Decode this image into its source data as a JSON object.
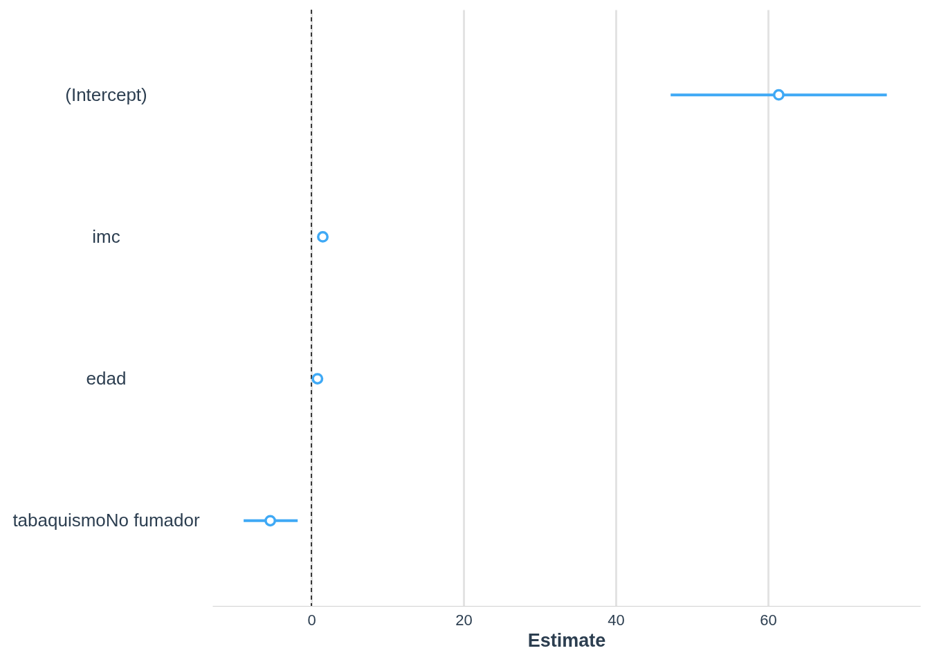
{
  "chart_data": {
    "type": "scatter",
    "orientation": "horizontal",
    "categories": [
      "(Intercept)",
      "imc",
      "edad",
      "tabaquismoNo fumador"
    ],
    "values": [
      61.4,
      1.5,
      0.8,
      -5.4
    ],
    "errors": [
      [
        47.2,
        75.6
      ],
      null,
      null,
      [
        -8.9,
        -1.8
      ]
    ],
    "color": "#3fa9f5",
    "marker": "circle",
    "xlabel": "Estimate",
    "xlim": [
      -13,
      80
    ],
    "xticks": [
      0,
      20,
      40,
      60
    ],
    "grid": "x",
    "ref_lines": [
      {
        "axis": "x",
        "value": 0,
        "color": "#000000",
        "line_style": "dashed"
      }
    ]
  }
}
